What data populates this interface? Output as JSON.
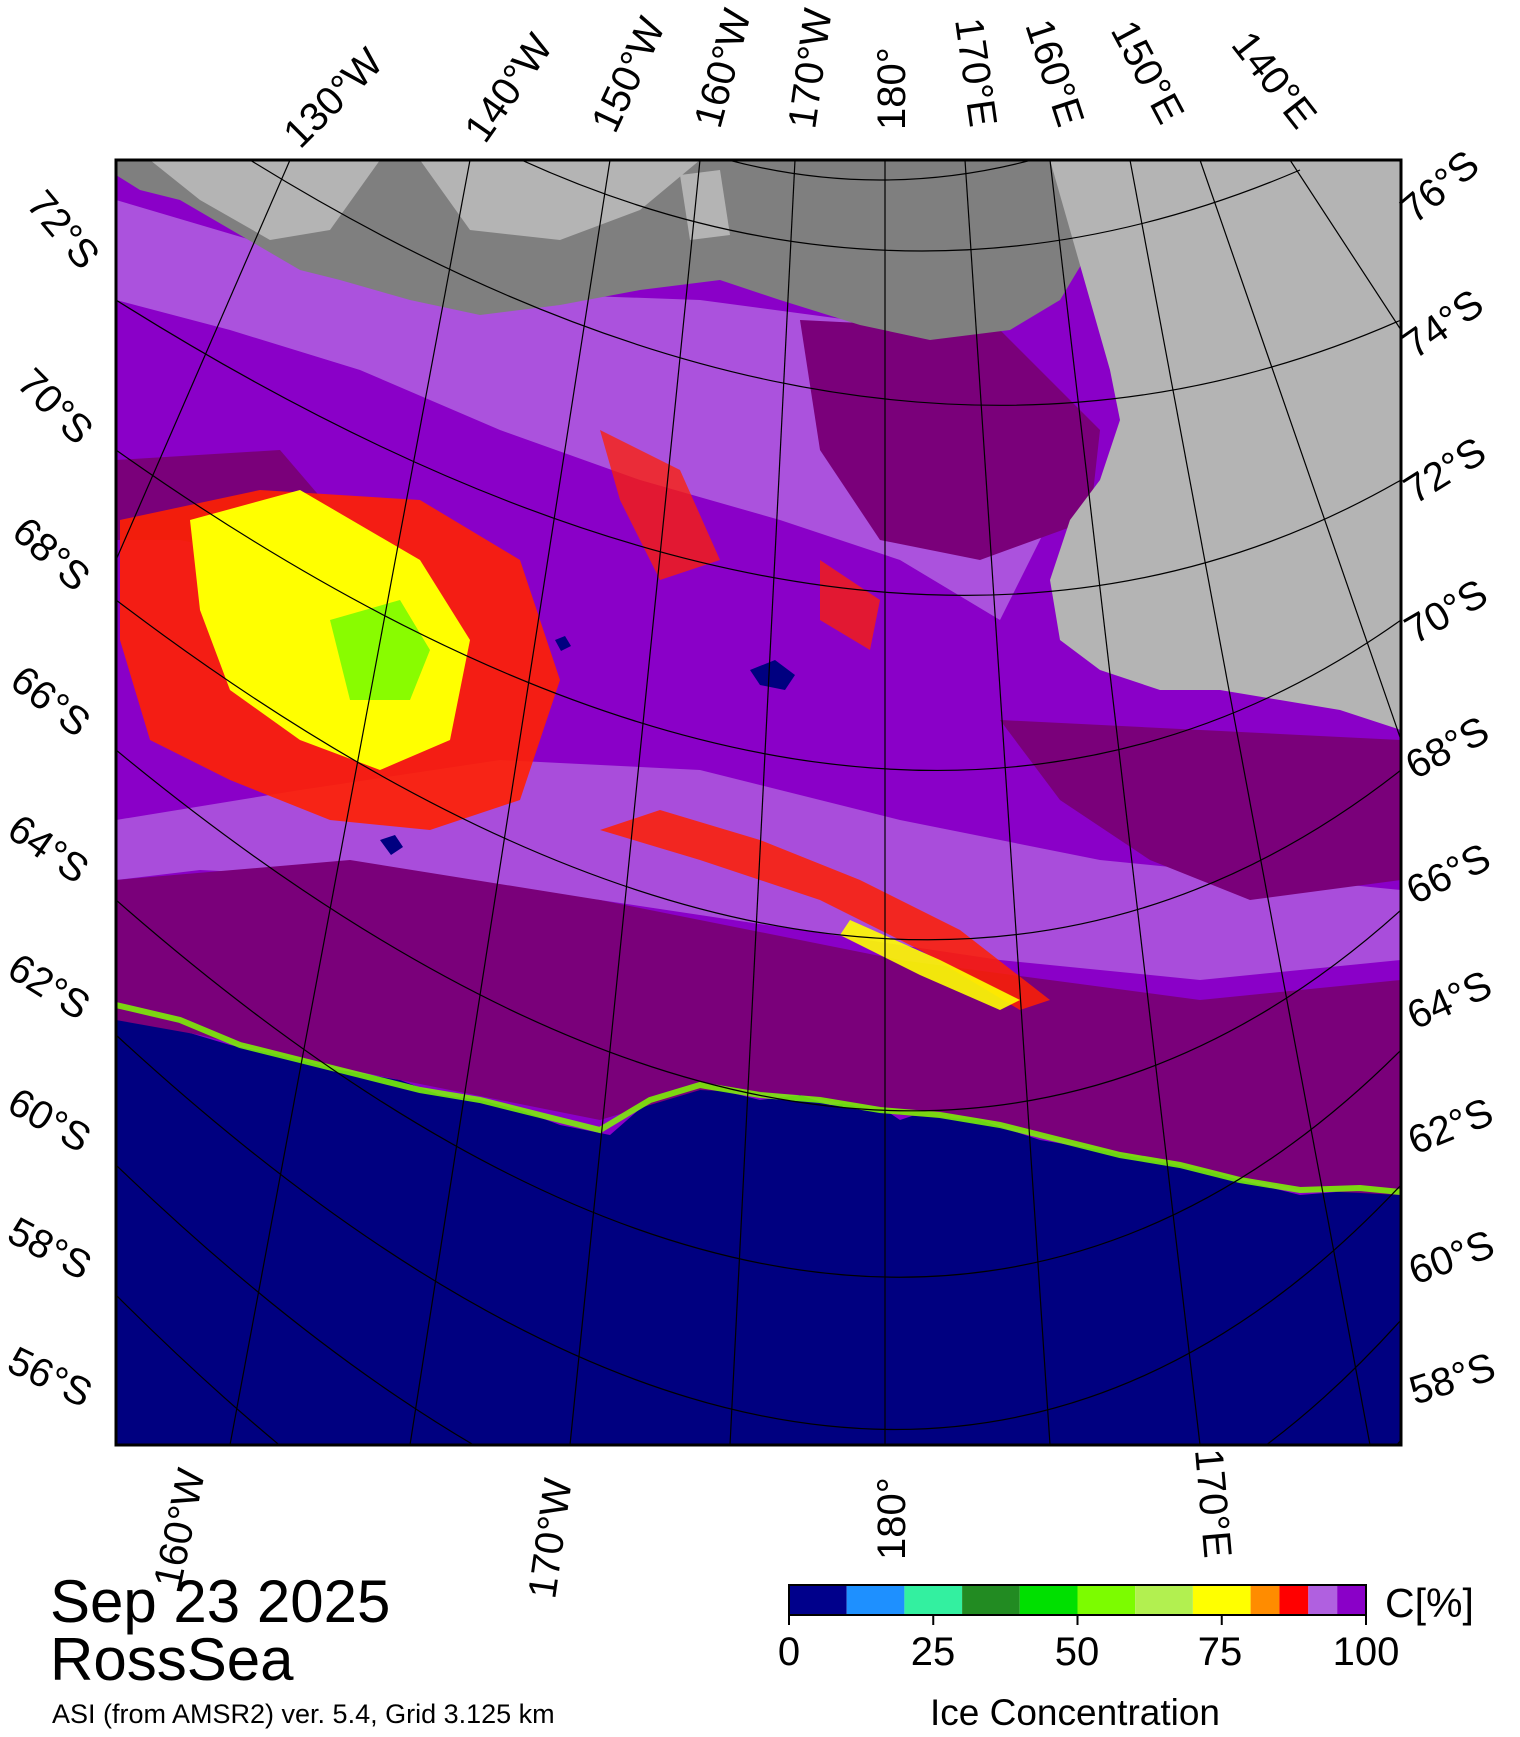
{
  "date": "Sep 23 2025",
  "region": "RossSea",
  "product": "ASI (from AMSR2) ver. 5.4,  Grid 3.125 km",
  "graticule": {
    "top_labels": [
      "130°W",
      "140°W",
      "150°W",
      "160°W",
      "170°W",
      "180°",
      "170°E",
      "160°E",
      "150°E",
      "140°E"
    ],
    "left_labels": [
      "72°S",
      "70°S",
      "68°S",
      "66°S",
      "64°S",
      "62°S",
      "60°S",
      "58°S",
      "56°S"
    ],
    "right_labels": [
      "76°S",
      "74°S",
      "72°S",
      "70°S",
      "68°S",
      "66°S",
      "64°S",
      "62°S",
      "60°S",
      "58°S"
    ],
    "bottom_labels": [
      "160°W",
      "170°W",
      "180°",
      "170°E"
    ]
  },
  "colorbar": {
    "unit": "C[%]",
    "title": "Ice Concentration",
    "ticks": [
      "0",
      "25",
      "50",
      "75",
      "100"
    ],
    "range": [
      0,
      100
    ],
    "bins": [
      {
        "from": 0,
        "to": 10,
        "color": "#00008b"
      },
      {
        "from": 10,
        "to": 20,
        "color": "#1e90ff"
      },
      {
        "from": 20,
        "to": 30,
        "color": "#33f0a0"
      },
      {
        "from": 30,
        "to": 40,
        "color": "#228b22"
      },
      {
        "from": 40,
        "to": 50,
        "color": "#00e000"
      },
      {
        "from": 50,
        "to": 60,
        "color": "#7cfc00"
      },
      {
        "from": 60,
        "to": 70,
        "color": "#b2f050"
      },
      {
        "from": 70,
        "to": 80,
        "color": "#ffff00"
      },
      {
        "from": 80,
        "to": 85,
        "color": "#ff8c00"
      },
      {
        "from": 85,
        "to": 90,
        "color": "#ff0000"
      },
      {
        "from": 90,
        "to": 95,
        "color": "#b060e0"
      },
      {
        "from": 95,
        "to": 100,
        "color": "#8a00c8"
      }
    ]
  },
  "map_colors": {
    "ocean": "#000080",
    "land": "#b4b4b4",
    "ice_shelf": "#7f7f7f",
    "ice_full": "#7a007a",
    "ice_high": "#8a00c8",
    "ice_med": "#b060e0",
    "ice_red": "#ff0000",
    "ice_yellow": "#ffff00",
    "ice_green": "#7cfc00"
  }
}
